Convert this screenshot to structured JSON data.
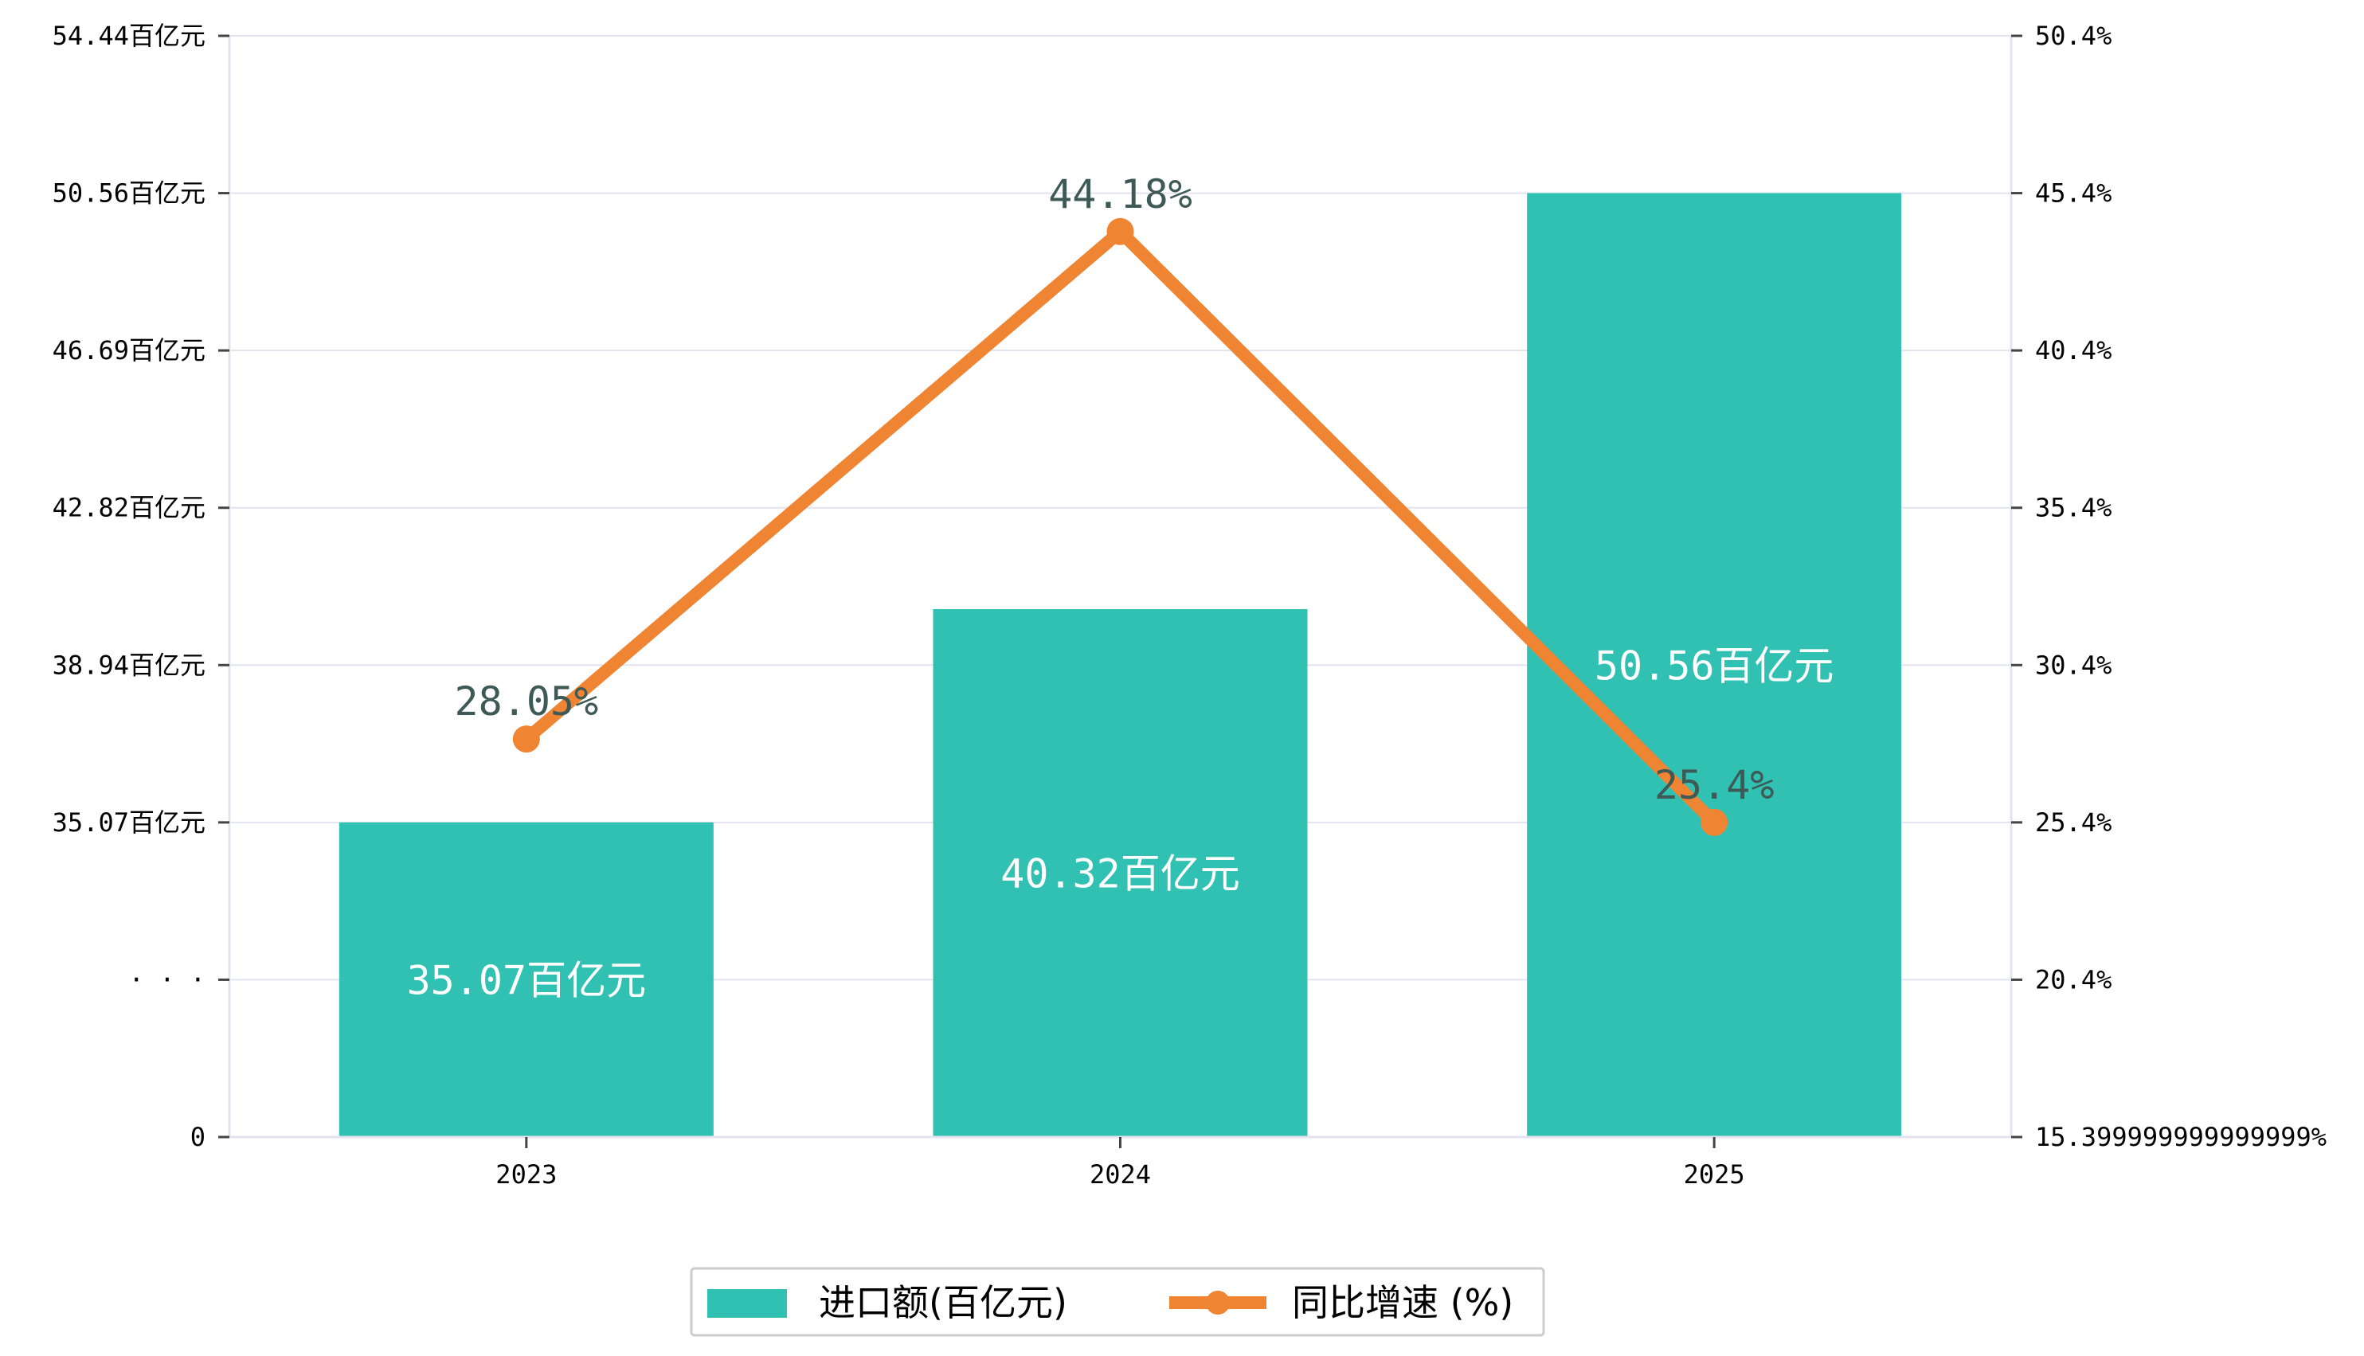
{
  "chart_data": {
    "type": "bar",
    "categories": [
      "2023",
      "2024",
      "2025"
    ],
    "series": [
      {
        "name": "进口额(百亿元)",
        "type": "bar",
        "axis": "left",
        "color": "#31c1b3",
        "values": [
          35.07,
          40.32,
          50.56
        ],
        "labels": [
          "35.07百亿元",
          "40.32百亿元",
          "50.56百亿元"
        ]
      },
      {
        "name": "同比增速 (%)",
        "type": "line",
        "axis": "right",
        "color": "#ef8433",
        "values": [
          28.05,
          44.18,
          25.4
        ],
        "labels": [
          "28.05%",
          "44.18%",
          "25.4%"
        ]
      }
    ],
    "y_left": {
      "broken": true,
      "ticks": [
        {
          "value": 0,
          "label": "0"
        },
        {
          "value": 31.2,
          "label": "· · ·"
        },
        {
          "value": 35.07,
          "label": "35.07百亿元"
        },
        {
          "value": 38.94,
          "label": "38.94百亿元"
        },
        {
          "value": 42.82,
          "label": "42.82百亿元"
        },
        {
          "value": 46.69,
          "label": "46.69百亿元"
        },
        {
          "value": 50.56,
          "label": "50.56百亿元"
        },
        {
          "value": 54.44,
          "label": "54.44百亿元"
        }
      ]
    },
    "y_right": {
      "ylim": [
        15.4,
        50.4
      ],
      "ticks": [
        {
          "value": 15.4,
          "label": "15.399999999999999%"
        },
        {
          "value": 20.4,
          "label": "20.4%"
        },
        {
          "value": 25.4,
          "label": "25.4%"
        },
        {
          "value": 30.4,
          "label": "30.4%"
        },
        {
          "value": 35.4,
          "label": "35.4%"
        },
        {
          "value": 40.4,
          "label": "40.4%"
        },
        {
          "value": 45.4,
          "label": "45.4%"
        },
        {
          "value": 50.4,
          "label": "50.4%"
        }
      ]
    },
    "grid": true,
    "legend_position": "bottom-center"
  }
}
